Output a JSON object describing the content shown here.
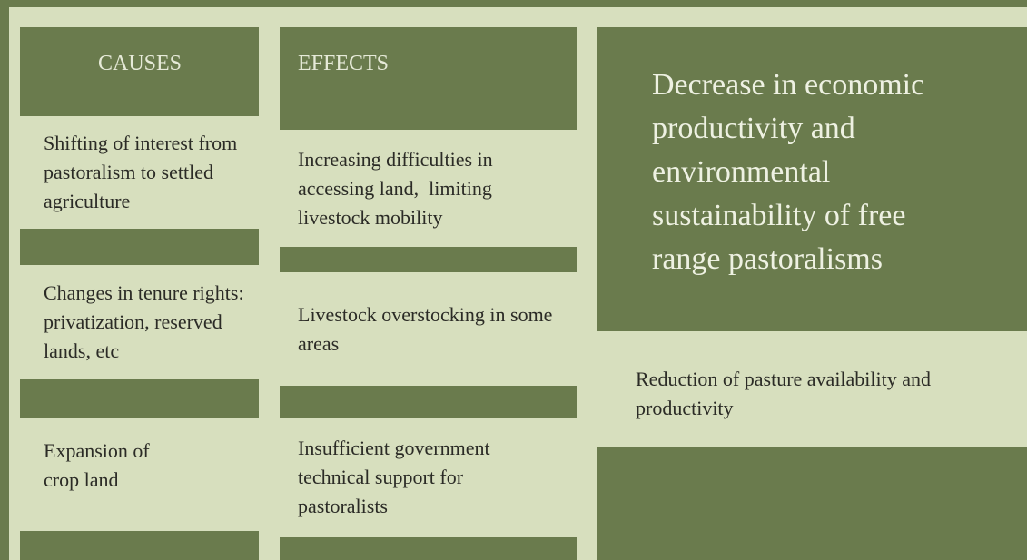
{
  "causes": {
    "title": "CAUSES",
    "items": [
      "Shifting of interest from pastoralism to settled agriculture",
      "Changes in tenure rights: privatization, reserved lands, etc",
      "Expansion of crop land"
    ]
  },
  "effects": {
    "title": "EFFECTS",
    "items": [
      "Increasing difficulties in accessing land,  limiting livestock mobility",
      "Livestock overstocking in some areas",
      "Insufficient government technical support for pastoralists"
    ]
  },
  "outcome": {
    "main": "Decrease in economic productivity and environmental sustainability of free range pastoralisms",
    "secondary": "Reduction of pasture availability and productivity"
  }
}
